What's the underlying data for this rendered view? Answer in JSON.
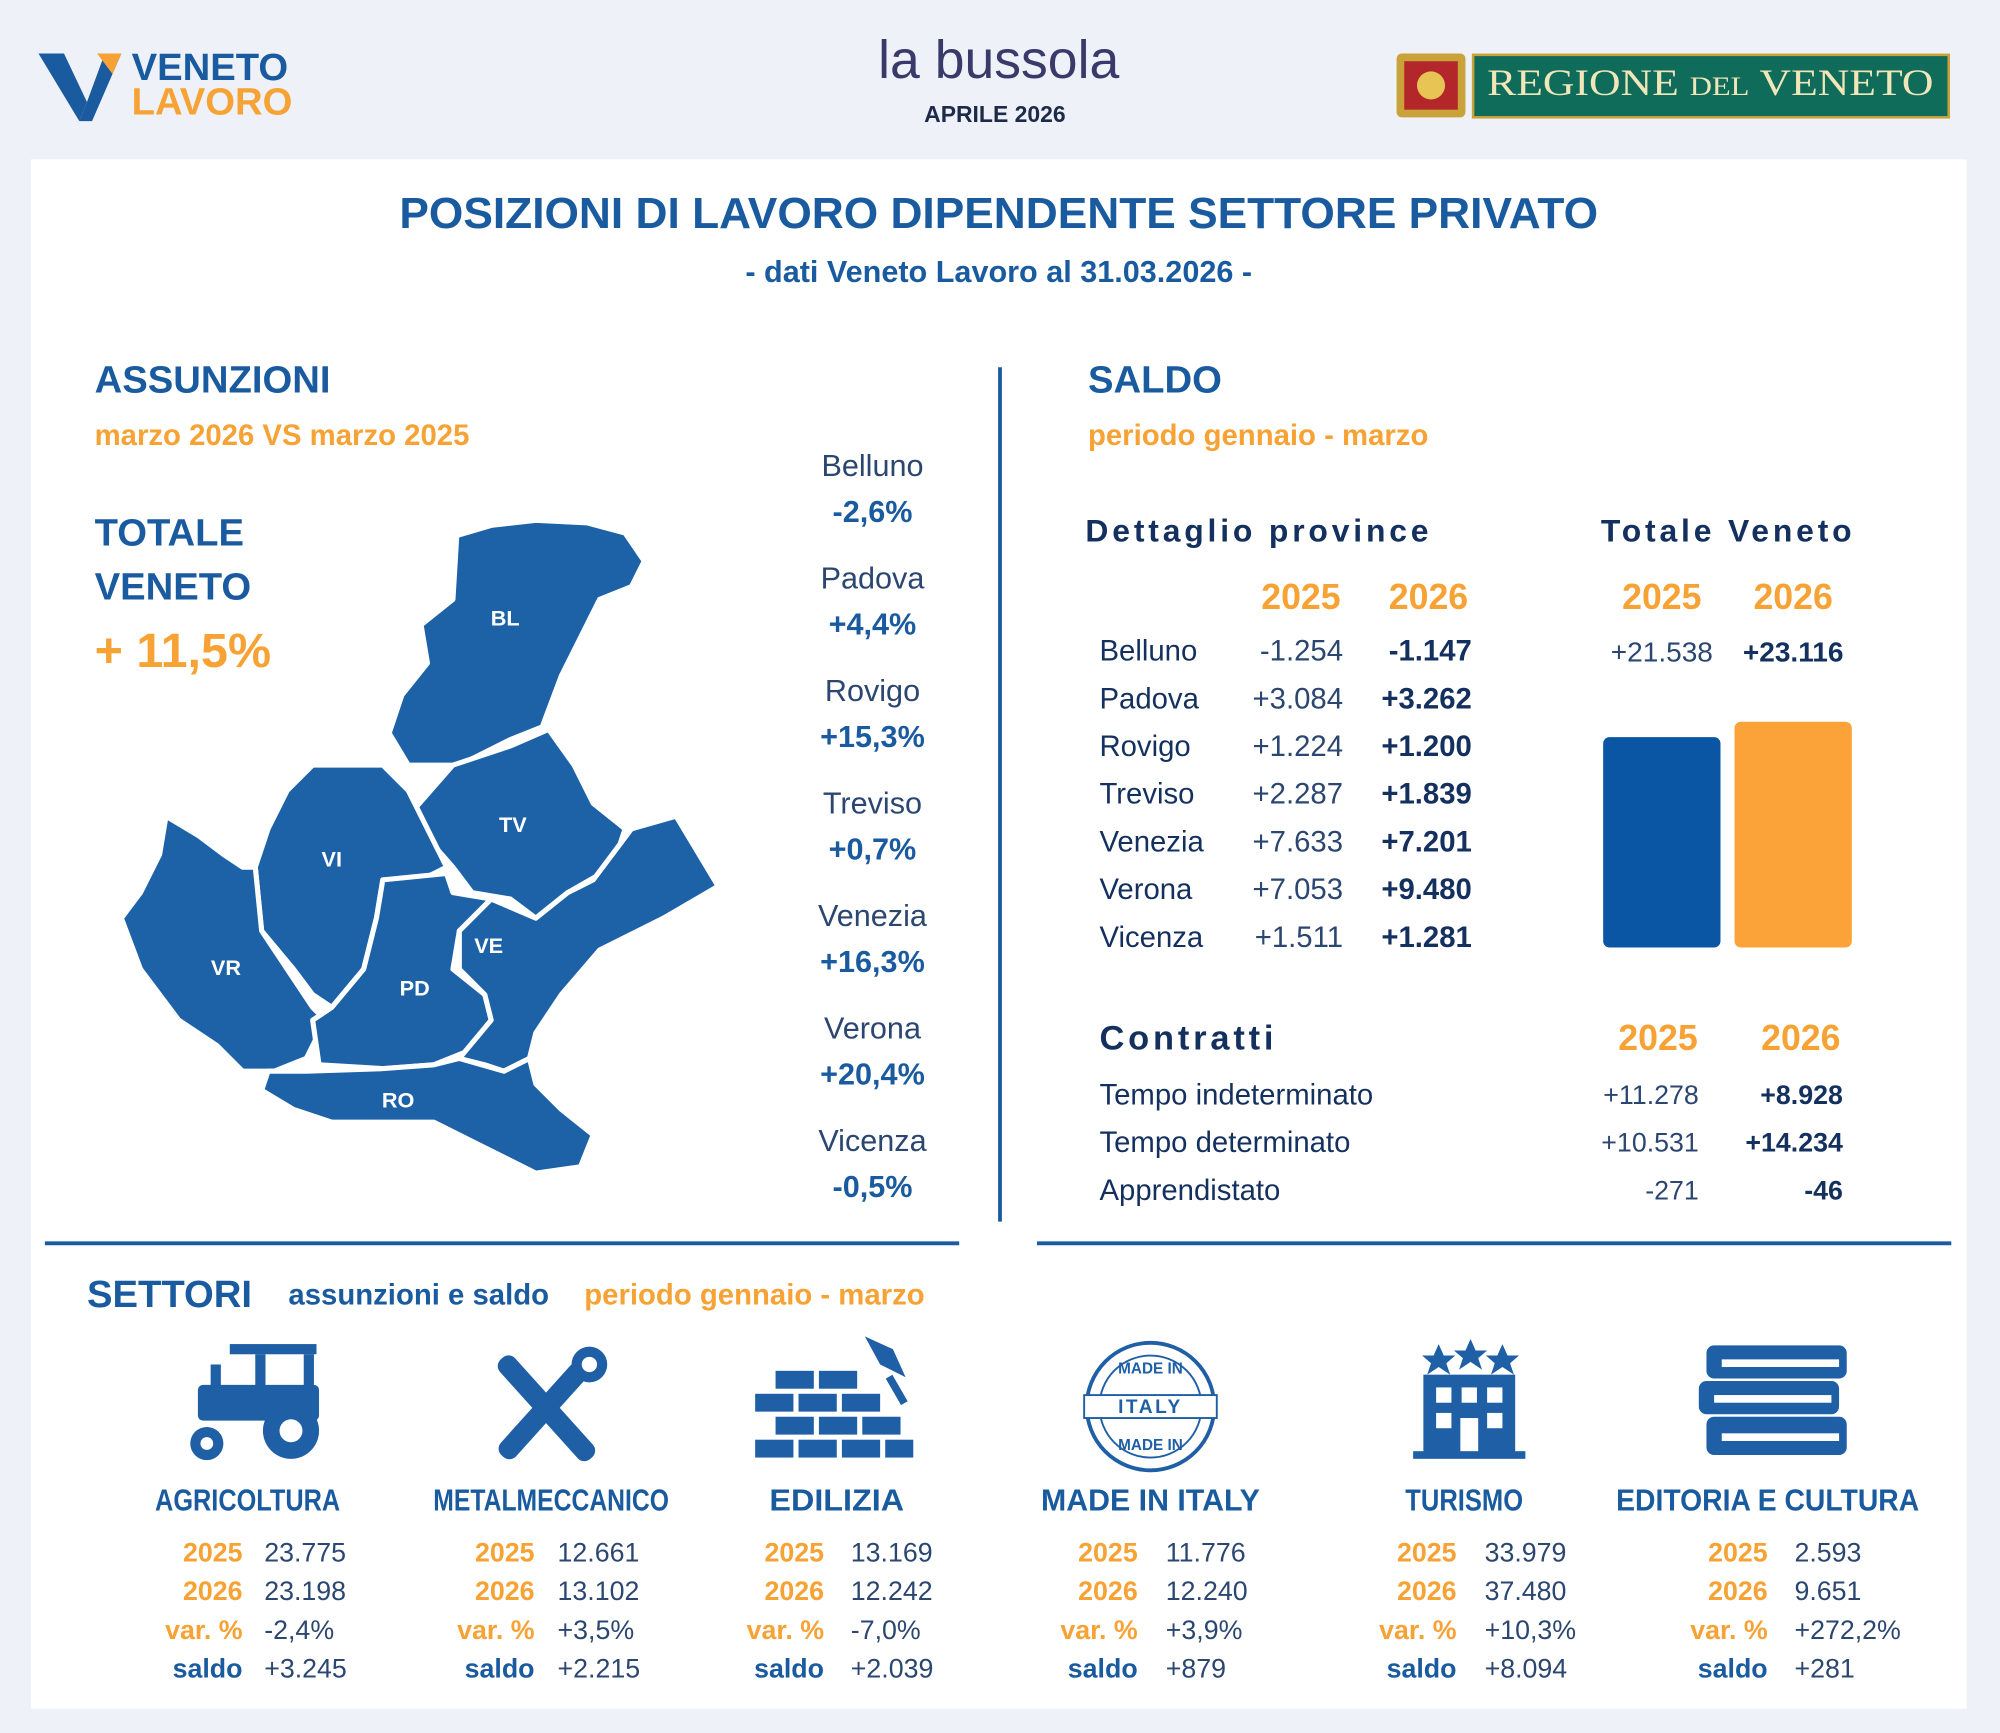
{
  "header": {
    "logo_top": "VENETO",
    "logo_bottom": "LAVORO",
    "brand": "la bussola",
    "edition": "APRILE 2026",
    "region": "REGIONE del VENETO"
  },
  "title": "POSIZIONI DI LAVORO DIPENDENTE SETTORE PRIVATO",
  "subtitle": "- dati Veneto Lavoro al 31.03.2026 -",
  "assunzioni": {
    "heading": "ASSUNZIONI",
    "period": "marzo 2026 VS marzo 2025",
    "total_label": [
      "TOTALE",
      "VENETO"
    ],
    "total_value": "+ 11,5%",
    "map_labels": [
      "BL",
      "TV",
      "VI",
      "VR",
      "PD",
      "VE",
      "RO"
    ],
    "provinces": [
      {
        "name": "Belluno",
        "value": "-2,6%"
      },
      {
        "name": "Padova",
        "value": "+4,4%"
      },
      {
        "name": "Rovigo",
        "value": "+15,3%"
      },
      {
        "name": "Treviso",
        "value": "+0,7%"
      },
      {
        "name": "Venezia",
        "value": "+16,3%"
      },
      {
        "name": "Verona",
        "value": "+20,4%"
      },
      {
        "name": "Vicenza",
        "value": "-0,5%"
      }
    ]
  },
  "saldo": {
    "heading": "SALDO",
    "period": "periodo gennaio - marzo",
    "detail_title": "Dettaglio province",
    "years": [
      "2025",
      "2026"
    ],
    "provinces": [
      [
        "Belluno",
        "-1.254",
        "-1.147"
      ],
      [
        "Padova",
        "+3.084",
        "+3.262"
      ],
      [
        "Rovigo",
        "+1.224",
        "+1.200"
      ],
      [
        "Treviso",
        "+2.287",
        "+1.839"
      ],
      [
        "Venezia",
        "+7.633",
        "+7.201"
      ],
      [
        "Verona",
        "+7.053",
        "+9.480"
      ],
      [
        "Vicenza",
        "+1.511",
        "+1.281"
      ]
    ],
    "total_title": "Totale Veneto",
    "total_years": [
      "2025",
      "2026"
    ],
    "totals": [
      21538,
      23116
    ],
    "total_labels": [
      "+21.538",
      "+23.116"
    ],
    "total_colors": [
      "#0a56a4",
      "#fba239"
    ],
    "contracts_title": "Contratti",
    "contracts_years": [
      "2025",
      "2026"
    ],
    "contracts": [
      [
        "Tempo indeterminato",
        "+11.278",
        "+8.928"
      ],
      [
        "Tempo determinato",
        "+10.531",
        "+14.234"
      ],
      [
        "Apprendistato",
        "-271",
        "-46"
      ]
    ]
  },
  "settori": {
    "heading": "SETTORI",
    "subtitle": "assunzioni e saldo",
    "subtitle_period": "periodo gennaio - marzo",
    "badge": [
      "MADE IN",
      "ITALY",
      "MADE IN"
    ],
    "row_labels": [
      "2025",
      "2026",
      "var. %",
      "saldo"
    ],
    "sectors": [
      {
        "name": "AGRICOLTURA",
        "values": [
          "23.775",
          "23.198",
          "-2,4%",
          "+3.245"
        ]
      },
      {
        "name": "METALMECCANICO",
        "values": [
          "12.661",
          "13.102",
          "+3,5%",
          "+2.215"
        ]
      },
      {
        "name": "EDILIZIA",
        "values": [
          "13.169",
          "12.242",
          "-7,0%",
          "+2.039"
        ]
      },
      {
        "name": "MADE IN ITALY",
        "values": [
          "11.776",
          "12.240",
          "+3,9%",
          "+879"
        ]
      },
      {
        "name": "TURISMO",
        "values": [
          "33.979",
          "37.480",
          "+10,3%",
          "+8.094"
        ]
      },
      {
        "name": "EDITORIA E CULTURA",
        "values": [
          "2.593",
          "9.651",
          "+272,2%",
          "+281"
        ]
      }
    ]
  }
}
